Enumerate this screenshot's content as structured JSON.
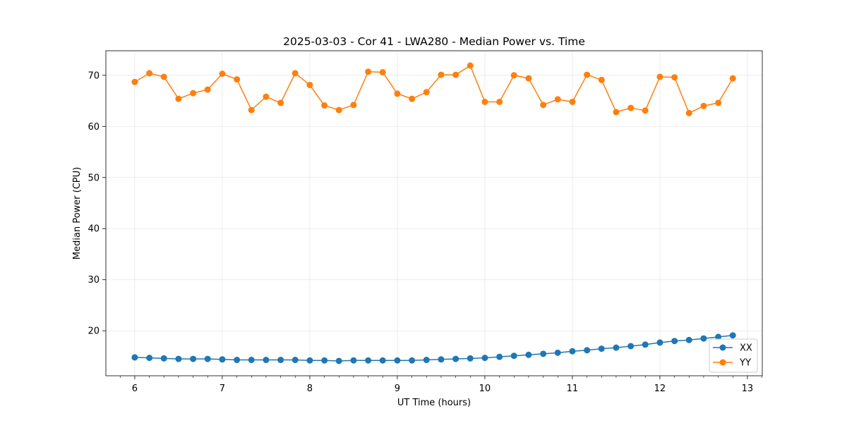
{
  "chart_data": {
    "type": "line",
    "title": "2025-03-03 - Cor 41 - LWA280 - Median Power vs. Time",
    "xlabel": "UT Time (hours)",
    "ylabel": "Median Power (CPU)",
    "xlim": [
      5.67,
      13.17
    ],
    "ylim": [
      11.2,
      74.8
    ],
    "xticks": [
      6,
      7,
      8,
      9,
      10,
      11,
      12,
      13
    ],
    "yticks": [
      20,
      30,
      40,
      50,
      60,
      70
    ],
    "xtick_labels": [
      "6",
      "7",
      "8",
      "9",
      "10",
      "11",
      "12",
      "13"
    ],
    "ytick_labels": [
      "20",
      "30",
      "40",
      "50",
      "60",
      "70"
    ],
    "grid": true,
    "legend_position": "bottom-right",
    "x": [
      6.0,
      6.167,
      6.333,
      6.5,
      6.667,
      6.833,
      7.0,
      7.167,
      7.333,
      7.5,
      7.667,
      7.833,
      8.0,
      8.167,
      8.333,
      8.5,
      8.667,
      8.833,
      9.0,
      9.167,
      9.333,
      9.5,
      9.667,
      9.833,
      10.0,
      10.167,
      10.333,
      10.5,
      10.667,
      10.833,
      11.0,
      11.167,
      11.333,
      11.5,
      11.667,
      11.833,
      12.0,
      12.167,
      12.333,
      12.5,
      12.667,
      12.833
    ],
    "series": [
      {
        "name": "XX",
        "color": "#1f77b4",
        "values": [
          14.8,
          14.7,
          14.6,
          14.5,
          14.5,
          14.5,
          14.4,
          14.3,
          14.3,
          14.3,
          14.3,
          14.3,
          14.2,
          14.2,
          14.1,
          14.2,
          14.2,
          14.2,
          14.2,
          14.2,
          14.3,
          14.4,
          14.5,
          14.6,
          14.7,
          14.9,
          15.1,
          15.3,
          15.5,
          15.7,
          16.0,
          16.2,
          16.5,
          16.7,
          17.0,
          17.3,
          17.7,
          18.0,
          18.2,
          18.5,
          18.8,
          19.1
        ]
      },
      {
        "name": "YY",
        "color": "#ff7f0e",
        "values": [
          68.7,
          70.4,
          69.7,
          65.4,
          66.5,
          67.2,
          70.3,
          69.2,
          63.2,
          65.8,
          64.6,
          70.4,
          68.1,
          64.1,
          63.2,
          64.2,
          70.7,
          70.6,
          66.4,
          65.4,
          66.7,
          70.1,
          70.1,
          71.9,
          64.8,
          64.8,
          70.0,
          69.4,
          64.2,
          65.3,
          64.8,
          70.1,
          69.1,
          62.8,
          63.6,
          63.1,
          69.7,
          69.6,
          62.6,
          64.0,
          64.6,
          69.4
        ]
      }
    ]
  }
}
